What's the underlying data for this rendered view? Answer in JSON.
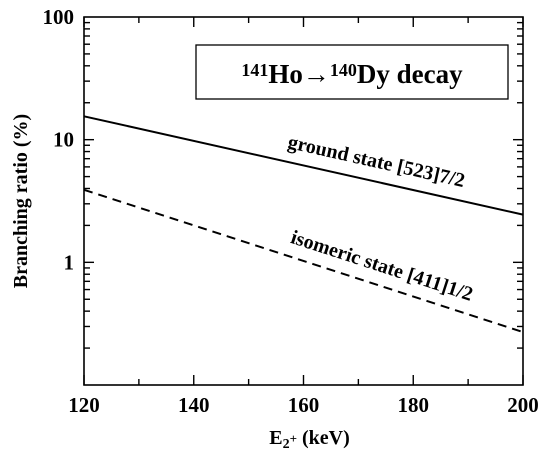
{
  "chart_data": {
    "type": "line",
    "title": "",
    "xlabel": {
      "main": "E",
      "sub": "2",
      "sup": "+",
      "unit": " (keV)"
    },
    "ylabel": "Branching ratio (%)",
    "x_scale": "linear",
    "y_scale": "log",
    "xlim": [
      120,
      200
    ],
    "ylim": [
      0.1,
      100
    ],
    "x_ticks": [
      120,
      140,
      160,
      180,
      200
    ],
    "x_tick_labels": [
      "120",
      "140",
      "160",
      "180",
      "200"
    ],
    "y_ticks": [
      1,
      10,
      100
    ],
    "y_tick_labels": [
      "1",
      "10",
      "100"
    ],
    "grid": false,
    "legend_box": {
      "parent_mass": "141",
      "parent": "Ho",
      "arrow": "→",
      "daughter_mass": "140",
      "daughter": "Dy",
      "suffix": " decay",
      "placement": "top-right"
    },
    "series": [
      {
        "name": "ground state [523]7/2",
        "style": "solid",
        "x": [
          120,
          200
        ],
        "y": [
          15.5,
          2.45
        ]
      },
      {
        "name": "isomeric state [411]1/2",
        "style": "dashed",
        "x": [
          120,
          200
        ],
        "y": [
          3.9,
          0.27
        ]
      }
    ]
  }
}
